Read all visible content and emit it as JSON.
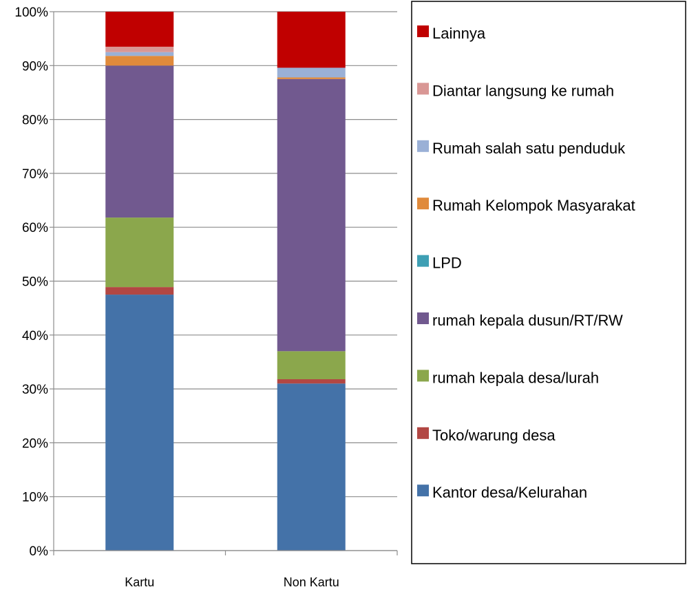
{
  "chart_data": {
    "type": "bar",
    "stacked": true,
    "percent": true,
    "categories": [
      "Kartu",
      "Non Kartu"
    ],
    "ylim": [
      0,
      100
    ],
    "yticks": [
      "0%",
      "10%",
      "20%",
      "30%",
      "40%",
      "50%",
      "60%",
      "70%",
      "80%",
      "90%",
      "100%"
    ],
    "grid": true,
    "legend_position": "right",
    "series": [
      {
        "name": "Kantor desa/Kelurahan",
        "color": "#4472A8",
        "values": [
          47.5,
          31.0
        ]
      },
      {
        "name": "Toko/warung desa",
        "color": "#B24743",
        "values": [
          1.4,
          0.8
        ]
      },
      {
        "name": "rumah kepala desa/lurah",
        "color": "#8BA74C",
        "values": [
          12.9,
          5.2
        ]
      },
      {
        "name": "rumah kepala dusun/RT/RW",
        "color": "#71598F",
        "values": [
          28.2,
          50.5
        ]
      },
      {
        "name": "LPD",
        "color": "#3E9FB4",
        "values": [
          0.0,
          0.0
        ]
      },
      {
        "name": "Rumah Kelompok Masyarakat",
        "color": "#E08A3B",
        "values": [
          1.8,
          0.3
        ]
      },
      {
        "name": "Rumah salah satu penduduk",
        "color": "#9AB0D6",
        "values": [
          0.7,
          1.8
        ]
      },
      {
        "name": "Diantar langsung ke rumah",
        "color": "#D99795",
        "values": [
          1.0,
          0.0
        ]
      },
      {
        "name": "Lainnya",
        "color": "#C00000",
        "values": [
          6.5,
          10.4
        ]
      }
    ]
  }
}
